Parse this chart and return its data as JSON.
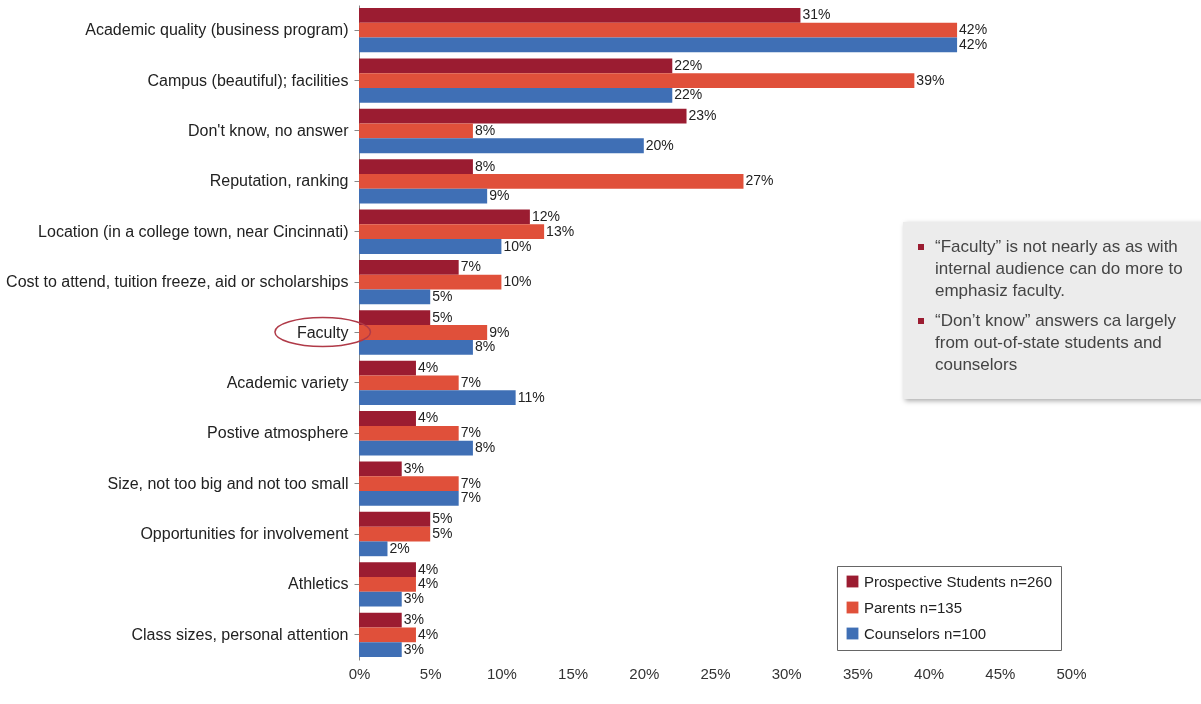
{
  "chart_data": {
    "type": "bar",
    "orientation": "horizontal",
    "categories": [
      "Academic quality (business program)",
      "Campus (beautiful); facilities",
      "Don't know, no answer",
      "Reputation, ranking",
      "Location (in a college town, near Cincinnati)",
      "Cost to attend, tuition freeze, aid or scholarships",
      "Faculty",
      "Academic variety",
      "Postive atmosphere",
      "Size, not too big and not too small",
      "Opportunities for involvement",
      "Athletics",
      "Class sizes, personal attention"
    ],
    "series": [
      {
        "name": "Prospective Students n=260",
        "color": "#9b1c31",
        "values": [
          31,
          22,
          23,
          8,
          12,
          7,
          5,
          4,
          4,
          3,
          5,
          4,
          3
        ],
        "value_labels": [
          "31%",
          "22%",
          "23%",
          "8%",
          "12%",
          "7%",
          "5%",
          "4%",
          "4%",
          "3%",
          "5%",
          "4%",
          "3%"
        ]
      },
      {
        "name": "Parents n=135",
        "color": "#e0503a",
        "values": [
          42,
          39,
          8,
          27,
          13,
          10,
          9,
          7,
          7,
          7,
          5,
          4,
          4
        ],
        "value_labels": [
          "42%",
          "39%",
          "8%",
          "27%",
          "13%",
          "10%",
          "9%",
          "7%",
          "7%",
          "7%",
          "5%",
          "4%",
          "4%"
        ]
      },
      {
        "name": "Counselors n=100",
        "color": "#3f6fb5",
        "values": [
          42,
          22,
          20,
          9,
          10,
          5,
          8,
          11,
          8,
          7,
          2,
          3,
          3
        ],
        "value_labels": [
          "42%",
          "22%",
          "20%",
          "9%",
          "10%",
          "5%",
          "8%",
          "11%",
          "8%",
          "7%",
          "2%",
          "3%",
          "3%"
        ]
      }
    ],
    "xlim": [
      0,
      50
    ],
    "xticks": [
      {
        "value": 0,
        "label": "0%"
      },
      {
        "value": 5,
        "label": "5%"
      },
      {
        "value": 10,
        "label": "10%"
      },
      {
        "value": 15,
        "label": "15%"
      },
      {
        "value": 20,
        "label": "20%"
      },
      {
        "value": 25,
        "label": "25%"
      },
      {
        "value": 30,
        "label": "30%"
      },
      {
        "value": 35,
        "label": "35%"
      },
      {
        "value": 40,
        "label": "40%"
      },
      {
        "value": 45,
        "label": "45%"
      },
      {
        "value": 50,
        "label": "50%"
      }
    ],
    "grid": false,
    "legend": "bottom right",
    "annotations": [
      "“Faculty” is not nearly as as with internal audience can do more to emphasiz faculty.",
      "“Don’t know” answers ca largely from out-of-state students and counselors"
    ]
  }
}
